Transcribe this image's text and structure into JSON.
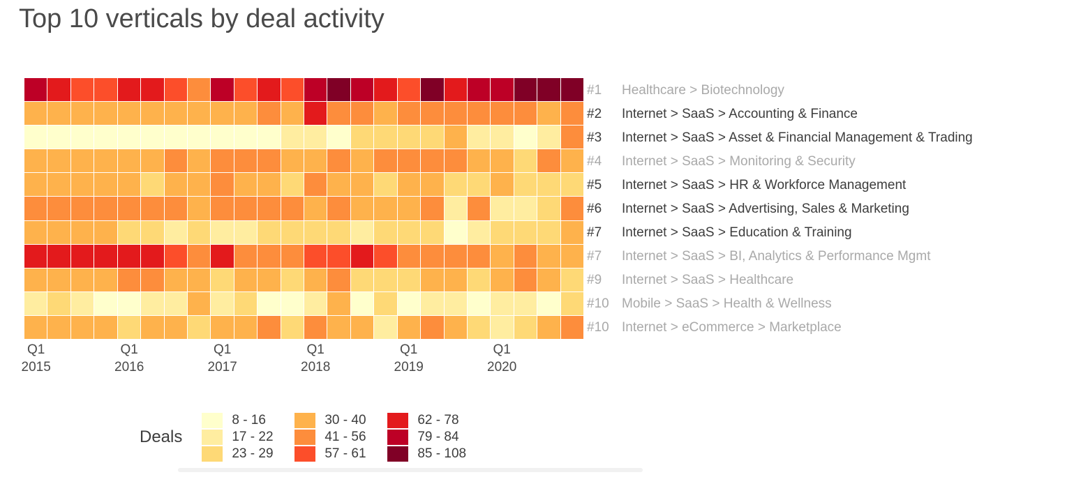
{
  "title": "Top 10 verticals by deal activity",
  "colors": {
    "title_text": "#4a4a4a",
    "dark_text": "#3d3d3d",
    "muted_text": "#a9a9a9",
    "axis_text": "#4a4a4a",
    "gridline": "#ffffff"
  },
  "legend": {
    "title": "Deals",
    "groups": [
      [
        {
          "range": "8 - 16",
          "color": "#FFFFCC"
        },
        {
          "range": "17 - 22",
          "color": "#FFEDA0"
        },
        {
          "range": "23 - 29",
          "color": "#FED976"
        }
      ],
      [
        {
          "range": "30 - 40",
          "color": "#FEB24C"
        },
        {
          "range": "41 - 56",
          "color": "#FD8D3C"
        },
        {
          "range": "57 - 61",
          "color": "#FC4E2A"
        }
      ],
      [
        {
          "range": "62 - 78",
          "color": "#E31A1C"
        },
        {
          "range": "79 - 84",
          "color": "#BD0026"
        },
        {
          "range": "85 - 108",
          "color": "#800026"
        }
      ]
    ]
  },
  "chart_data": {
    "type": "heatmap",
    "title": "Top 10 verticals by deal activity",
    "n_columns": 24,
    "columns_note": "quarterly columns, Q1 2015 through Q4 2020",
    "x_ticks": [
      {
        "top": "Q1",
        "bottom": "2015"
      },
      {
        "top": "Q1",
        "bottom": "2016"
      },
      {
        "top": "Q1",
        "bottom": "2017"
      },
      {
        "top": "Q1",
        "bottom": "2018"
      },
      {
        "top": "Q1",
        "bottom": "2019"
      },
      {
        "top": "Q1",
        "bottom": "2020"
      }
    ],
    "legend_position": "bottom",
    "palette": [
      "#FFFFCC",
      "#FFEDA0",
      "#FED976",
      "#FEB24C",
      "#FD8D3C",
      "#FC4E2A",
      "#E31A1C",
      "#BD0026",
      "#800026"
    ],
    "palette_ranges": [
      "8 - 16",
      "17 - 22",
      "23 - 29",
      "30 - 40",
      "41 - 56",
      "57 - 61",
      "62 - 78",
      "79 - 84",
      "85 - 108"
    ],
    "value_note": "levels are 1-9 bucket indices into palette_ranges (deals per quarter, read from cell colors)",
    "rows": [
      {
        "rank": "#1",
        "label": "Healthcare > Biotechnology",
        "muted": true,
        "levels": [
          8,
          7,
          6,
          6,
          7,
          7,
          6,
          5,
          8,
          6,
          7,
          6,
          8,
          9,
          8,
          7,
          6,
          9,
          7,
          8,
          8,
          9,
          9,
          9
        ]
      },
      {
        "rank": "#2",
        "label": "Internet > SaaS > Accounting & Finance",
        "muted": false,
        "levels": [
          4,
          4,
          4,
          4,
          4,
          4,
          4,
          4,
          4,
          4,
          5,
          4,
          7,
          5,
          5,
          4,
          5,
          5,
          5,
          5,
          5,
          5,
          4,
          5
        ]
      },
      {
        "rank": "#3",
        "label": "Internet > SaaS > Asset & Financial Management & Trading",
        "muted": false,
        "levels": [
          1,
          1,
          1,
          1,
          1,
          1,
          1,
          1,
          1,
          1,
          1,
          2,
          2,
          1,
          3,
          3,
          3,
          3,
          4,
          2,
          2,
          1,
          2,
          5
        ]
      },
      {
        "rank": "#4",
        "label": "Internet > SaaS > Monitoring & Security",
        "muted": true,
        "levels": [
          4,
          4,
          4,
          4,
          4,
          4,
          5,
          4,
          5,
          5,
          5,
          4,
          4,
          5,
          4,
          5,
          5,
          5,
          5,
          4,
          4,
          3,
          5,
          4
        ]
      },
      {
        "rank": "#5",
        "label": "Internet > SaaS > HR & Workforce Management",
        "muted": false,
        "levels": [
          4,
          4,
          4,
          4,
          4,
          3,
          4,
          4,
          5,
          4,
          4,
          3,
          5,
          4,
          4,
          3,
          4,
          4,
          3,
          3,
          4,
          3,
          3,
          3
        ]
      },
      {
        "rank": "#6",
        "label": "Internet > SaaS > Advertising, Sales & Marketing",
        "muted": false,
        "levels": [
          5,
          5,
          5,
          5,
          5,
          5,
          5,
          4,
          5,
          5,
          5,
          5,
          4,
          5,
          4,
          4,
          4,
          5,
          2,
          5,
          2,
          2,
          3,
          5
        ]
      },
      {
        "rank": "#7",
        "label": "Internet > SaaS > Education & Training",
        "muted": false,
        "levels": [
          4,
          4,
          4,
          4,
          3,
          3,
          2,
          3,
          2,
          2,
          3,
          3,
          3,
          3,
          2,
          3,
          3,
          3,
          1,
          2,
          3,
          3,
          3,
          4
        ]
      },
      {
        "rank": "#7",
        "label": "Internet > SaaS > BI, Analytics & Performance Mgmt",
        "muted": true,
        "levels": [
          7,
          7,
          7,
          7,
          7,
          7,
          6,
          5,
          7,
          5,
          5,
          5,
          6,
          6,
          7,
          6,
          5,
          5,
          5,
          5,
          4,
          5,
          4,
          4
        ]
      },
      {
        "rank": "#9",
        "label": "Internet > SaaS > Healthcare",
        "muted": true,
        "levels": [
          4,
          4,
          4,
          4,
          5,
          5,
          4,
          4,
          3,
          4,
          4,
          3,
          4,
          5,
          3,
          3,
          3,
          4,
          4,
          3,
          4,
          5,
          4,
          3
        ]
      },
      {
        "rank": "#10",
        "label": "Mobile > SaaS > Health & Wellness",
        "muted": true,
        "levels": [
          2,
          3,
          2,
          1,
          1,
          2,
          2,
          4,
          2,
          3,
          1,
          1,
          2,
          4,
          1,
          3,
          1,
          2,
          2,
          1,
          2,
          2,
          1,
          3
        ]
      },
      {
        "rank": "#10",
        "label": "Internet > eCommerce > Marketplace",
        "muted": true,
        "levels": [
          4,
          4,
          4,
          4,
          3,
          4,
          4,
          3,
          4,
          4,
          5,
          3,
          5,
          4,
          4,
          2,
          4,
          5,
          4,
          3,
          2,
          3,
          4,
          5
        ]
      }
    ]
  }
}
